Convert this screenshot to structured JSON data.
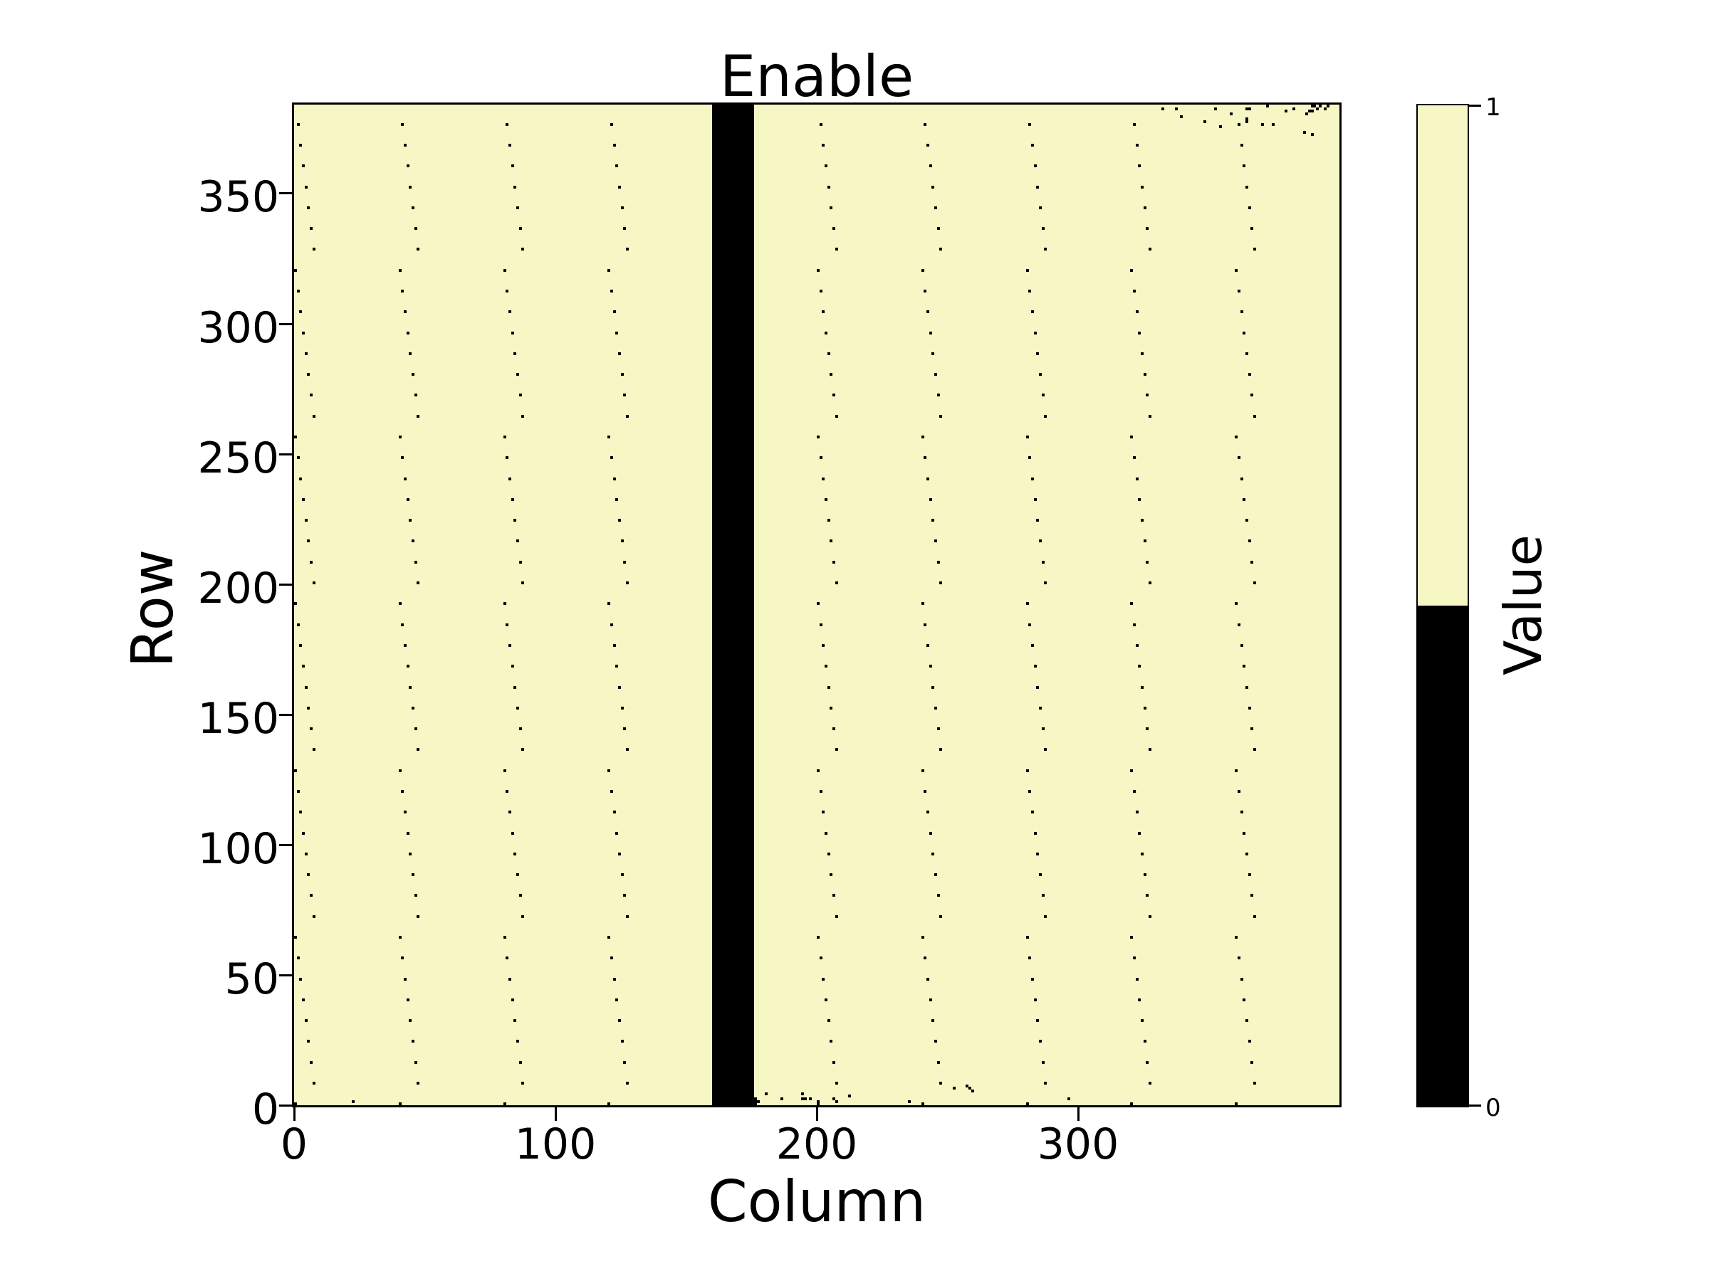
{
  "figure": {
    "background": "#ffffff"
  },
  "chart_data": {
    "type": "heatmap",
    "title": "Enable",
    "xlabel": "Column",
    "ylabel": "Row",
    "n_cols": 400,
    "n_rows": 384,
    "xlim": [
      0,
      400
    ],
    "ylim": [
      0,
      384
    ],
    "x_ticks": [
      0,
      100,
      200,
      300
    ],
    "y_ticks": [
      0,
      50,
      100,
      150,
      200,
      250,
      300,
      350
    ],
    "grid": false,
    "background_value": 1,
    "value_colors": {
      "0": "#000000",
      "1": "#f7f7c6"
    },
    "colorbar": {
      "label": "Value",
      "tick_top_label": "1",
      "tick_bottom_label": "0",
      "boundary_fraction": 0.5
    },
    "disabled_column_band": {
      "col_start": 160,
      "col_count": 16
    },
    "periodic_disabled_pixels": {
      "description": "one disabled pixel every 8 rows per 40-column group; column offset cycles mod 8, decreasing by 1 as row increases",
      "col_group_starts": [
        0,
        40,
        80,
        120,
        160,
        200,
        240,
        280,
        320,
        360
      ],
      "row_start": 0,
      "row_step": 8,
      "rows_per_group": 48,
      "col_offset_mod": 8
    },
    "extra_disabled_pixels": {
      "top_right": [
        [
          332,
          382
        ],
        [
          337,
          382
        ],
        [
          339,
          379
        ],
        [
          348,
          377
        ],
        [
          352,
          382
        ],
        [
          354,
          375
        ],
        [
          358,
          380
        ],
        [
          364,
          382
        ],
        [
          365,
          382
        ],
        [
          364,
          378
        ],
        [
          364,
          377
        ],
        [
          370,
          376
        ],
        [
          372,
          383
        ],
        [
          374,
          376
        ],
        [
          379,
          381
        ],
        [
          382,
          382
        ],
        [
          386,
          373
        ],
        [
          389,
          372
        ],
        [
          387,
          380
        ],
        [
          388,
          381
        ],
        [
          389,
          381
        ],
        [
          389,
          383
        ],
        [
          390,
          383
        ],
        [
          391,
          382
        ],
        [
          392,
          383
        ],
        [
          394,
          382
        ],
        [
          395,
          383
        ]
      ],
      "bottom_edge": [
        [
          176,
          0
        ],
        [
          176,
          1
        ],
        [
          176,
          2
        ],
        [
          177,
          1
        ],
        [
          180,
          4
        ],
        [
          186,
          2
        ],
        [
          194,
          4
        ],
        [
          194,
          2
        ],
        [
          195,
          2
        ],
        [
          197,
          2
        ],
        [
          200,
          1
        ],
        [
          206,
          2
        ],
        [
          207,
          1
        ],
        [
          212,
          3
        ],
        [
          235,
          1
        ],
        [
          240,
          0
        ],
        [
          252,
          6
        ],
        [
          257,
          7
        ],
        [
          258,
          6
        ],
        [
          259,
          5
        ],
        [
          280,
          0
        ],
        [
          296,
          2
        ],
        [
          320,
          0
        ],
        [
          22,
          1
        ]
      ]
    }
  }
}
